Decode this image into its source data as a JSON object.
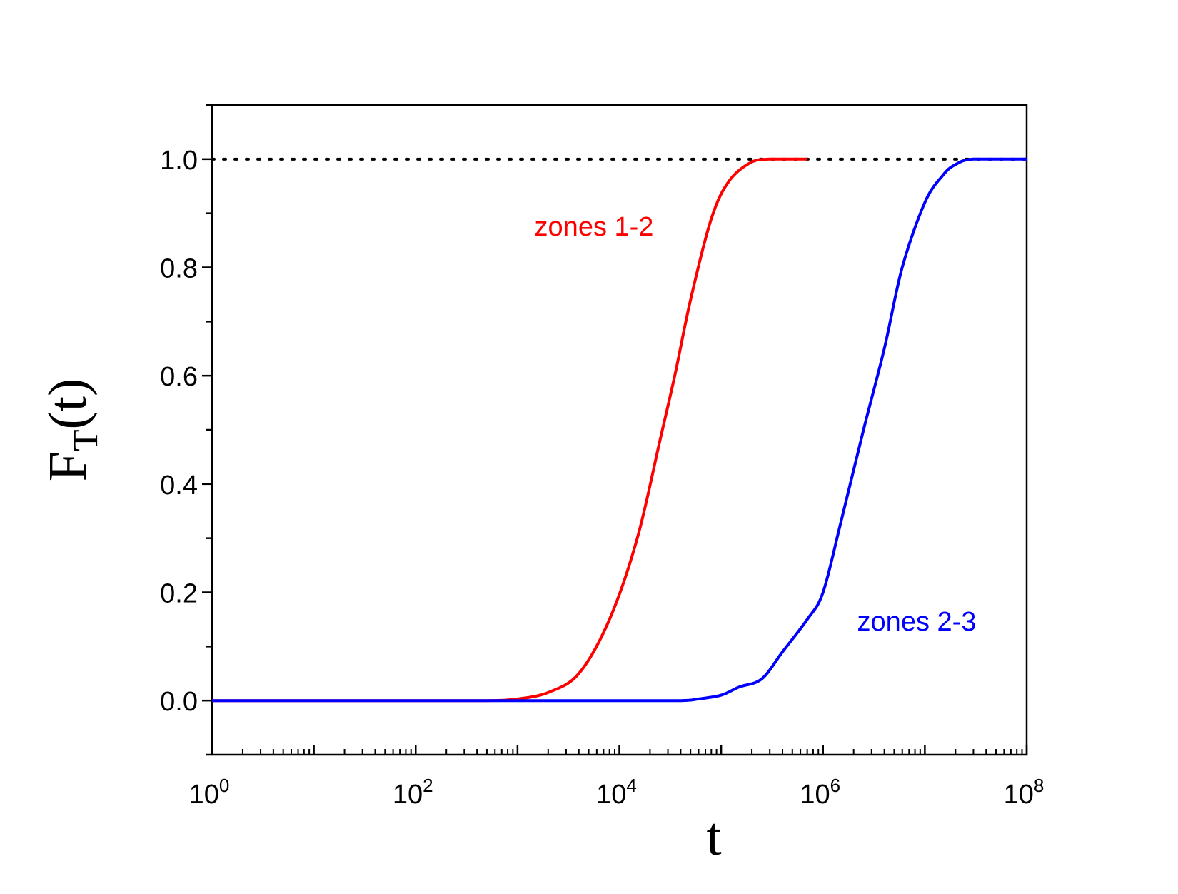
{
  "chart_data": {
    "type": "line",
    "xscale": "log",
    "xlim": [
      1,
      100000000
    ],
    "ylim": [
      -0.1,
      1.1
    ],
    "xlabel": "t",
    "ylabel_main": "F",
    "ylabel_sub": "T",
    "ylabel_tail": "(t)",
    "x_ticks": [
      {
        "base": "10",
        "exp": "0"
      },
      {
        "base": "10",
        "exp": "2"
      },
      {
        "base": "10",
        "exp": "4"
      },
      {
        "base": "10",
        "exp": "6"
      },
      {
        "base": "10",
        "exp": "8"
      }
    ],
    "y_ticks": [
      "0.0",
      "0.2",
      "0.4",
      "0.6",
      "0.8",
      "1.0"
    ],
    "reference_line": {
      "y": 1.0,
      "style": "dotted",
      "color": "#000000"
    },
    "series": [
      {
        "label": "zones 1-2",
        "color": "#ff0000",
        "x": [
          1,
          100,
          500,
          1000,
          2000,
          4000,
          8000,
          15000,
          25000,
          35000,
          50000,
          80000,
          120000,
          200000,
          300000,
          700000
        ],
        "y": [
          0,
          0,
          0.0,
          0.003,
          0.015,
          0.05,
          0.15,
          0.3,
          0.48,
          0.6,
          0.74,
          0.89,
          0.96,
          0.995,
          1.0,
          1.0
        ]
      },
      {
        "label": "zones 2-3",
        "color": "#0000ff",
        "x": [
          1,
          10000,
          40000,
          60000,
          100000,
          150000,
          250000,
          400000,
          700000,
          1000000,
          1500000,
          2500000,
          4000000,
          6000000,
          10000000,
          15000000,
          20000000,
          30000000,
          100000000
        ],
        "y": [
          0,
          0,
          0.0,
          0.003,
          0.01,
          0.025,
          0.04,
          0.09,
          0.15,
          0.2,
          0.33,
          0.5,
          0.65,
          0.8,
          0.92,
          0.97,
          0.99,
          1.0,
          1.0
        ]
      }
    ]
  }
}
